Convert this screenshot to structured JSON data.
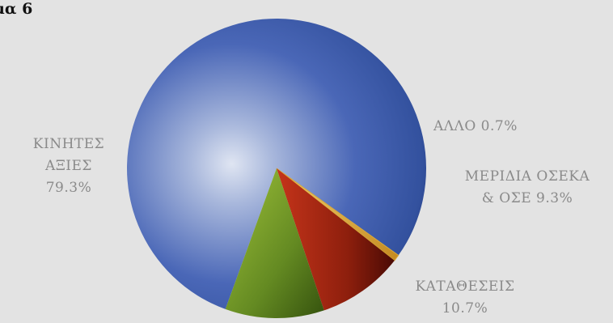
{
  "chart_data": {
    "type": "pie",
    "title": "μα 6",
    "slices": [
      {
        "label_lines": [
          "ΚΙΝΗΤΕΣ",
          "ΑΞΙΕΣ",
          "79.3%"
        ],
        "value": 79.3,
        "color": "#3e5cae"
      },
      {
        "label_lines": [
          "ΑΛΛΟ 0.7%"
        ],
        "value": 0.7,
        "color": "#e6b84a"
      },
      {
        "label_lines": [
          "ΜΕΡΙΔΙΑ ΟΣΕΚΑ",
          "& ΟΣΕ 9.3%"
        ],
        "value": 9.3,
        "color": "#b02a14"
      },
      {
        "label_lines": [
          "ΚΑΤΑΘΕΣΕΙΣ",
          "10.7%"
        ],
        "value": 10.7,
        "color": "#8bb030"
      }
    ]
  }
}
